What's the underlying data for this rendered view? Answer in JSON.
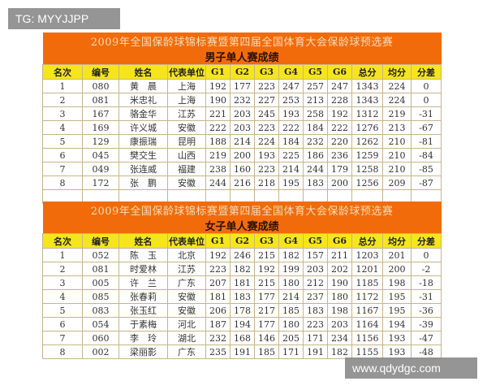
{
  "watermarks": {
    "top_left": "TG: MYYJJPP",
    "bottom_right": "www.qdydgc.com"
  },
  "headers": [
    "名次",
    "编号",
    "姓名",
    "代表单位",
    "G1",
    "G2",
    "G3",
    "G4",
    "G5",
    "G6",
    "总分",
    "均分",
    "分差"
  ],
  "men": {
    "title": "2009年全国保龄球锦标赛暨第四届全国体育大会保龄球预选赛",
    "subtitle": "男子单人赛成绩",
    "rows": [
      [
        "1",
        "080",
        "黄　晨",
        "上海",
        "192",
        "177",
        "223",
        "247",
        "257",
        "247",
        "1343",
        "224",
        "0"
      ],
      [
        "2",
        "081",
        "米忠礼",
        "上海",
        "190",
        "232",
        "227",
        "253",
        "213",
        "228",
        "1343",
        "224",
        "0"
      ],
      [
        "3",
        "167",
        "骆金华",
        "江苏",
        "221",
        "203",
        "245",
        "193",
        "258",
        "192",
        "1312",
        "219",
        "-31"
      ],
      [
        "4",
        "169",
        "许义城",
        "安徽",
        "222",
        "203",
        "223",
        "222",
        "184",
        "222",
        "1276",
        "213",
        "-67"
      ],
      [
        "5",
        "129",
        "康振瑞",
        "昆明",
        "188",
        "214",
        "224",
        "184",
        "232",
        "220",
        "1262",
        "210",
        "-81"
      ],
      [
        "6",
        "045",
        "樊交生",
        "山西",
        "219",
        "200",
        "193",
        "225",
        "186",
        "236",
        "1259",
        "210",
        "-84"
      ],
      [
        "7",
        "049",
        "张连威",
        "福建",
        "238",
        "160",
        "223",
        "214",
        "244",
        "179",
        "1258",
        "210",
        "-85"
      ],
      [
        "8",
        "172",
        "张　鹏",
        "安徽",
        "244",
        "216",
        "218",
        "195",
        "183",
        "200",
        "1256",
        "209",
        "-87"
      ]
    ]
  },
  "women": {
    "title": "2009年全国保龄球锦标赛暨第四届全国体育大会保龄球预选赛",
    "subtitle": "女子单人赛成绩",
    "rows": [
      [
        "1",
        "052",
        "陈　玉",
        "北京",
        "192",
        "246",
        "215",
        "182",
        "157",
        "211",
        "1203",
        "201",
        "0"
      ],
      [
        "2",
        "081",
        "时爱林",
        "江苏",
        "223",
        "182",
        "192",
        "199",
        "203",
        "202",
        "1201",
        "200",
        "-2"
      ],
      [
        "3",
        "005",
        "许　兰",
        "广东",
        "207",
        "181",
        "215",
        "180",
        "212",
        "190",
        "1185",
        "198",
        "-18"
      ],
      [
        "4",
        "085",
        "张春莉",
        "安徽",
        "181",
        "183",
        "177",
        "214",
        "237",
        "180",
        "1172",
        "195",
        "-31"
      ],
      [
        "5",
        "083",
        "张玉红",
        "安徽",
        "206",
        "178",
        "217",
        "185",
        "183",
        "198",
        "1167",
        "195",
        "-36"
      ],
      [
        "6",
        "054",
        "于素梅",
        "河北",
        "187",
        "194",
        "177",
        "180",
        "223",
        "203",
        "1164",
        "194",
        "-39"
      ],
      [
        "7",
        "060",
        "李　玲",
        "湖北",
        "232",
        "168",
        "146",
        "205",
        "171",
        "234",
        "1156",
        "193",
        "-47"
      ],
      [
        "8",
        "002",
        "梁丽影",
        "广东",
        "235",
        "191",
        "185",
        "171",
        "191",
        "182",
        "1155",
        "193",
        "-48"
      ]
    ]
  }
}
